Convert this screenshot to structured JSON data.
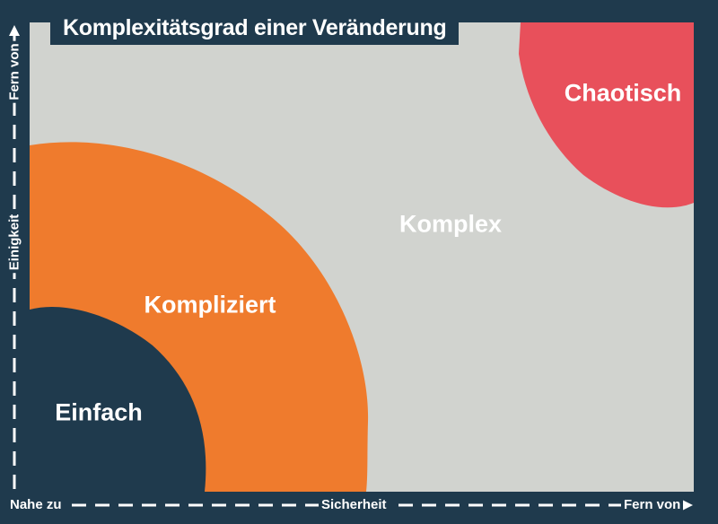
{
  "title": "Komplexitätsgrad einer Veränderung",
  "regions": {
    "einfach": "Einfach",
    "kompliziert": "Kompliziert",
    "komplex": "Komplex",
    "chaotisch": "Chaotisch"
  },
  "x_axis": {
    "start_label": "Nahe zu",
    "label": "Sicherheit",
    "end_label": "Fern von"
  },
  "y_axis": {
    "label": "Einigkeit",
    "end_label": "Fern von"
  },
  "colors": {
    "background": "#1f3a4d",
    "panel": "#d1d3cf",
    "einfach": "#1f3a4d",
    "kompliziert": "#ef7b2d",
    "chaotisch": "#e8505b",
    "text": "#ffffff"
  }
}
